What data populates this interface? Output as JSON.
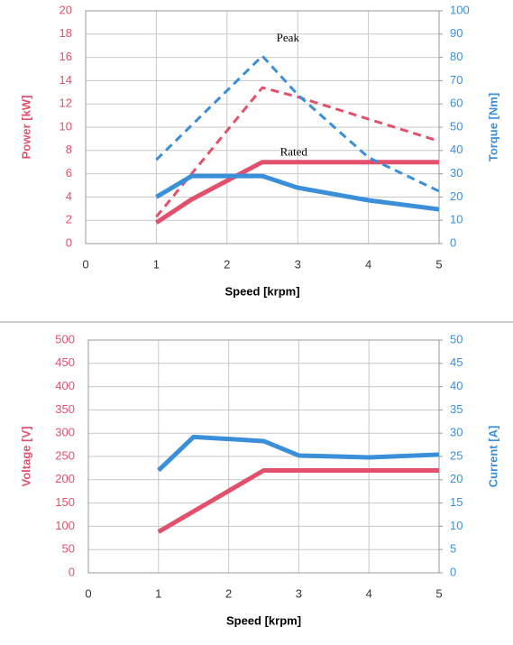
{
  "chart_data": [
    {
      "type": "line",
      "xlabel": "Speed [krpm]",
      "ylabel": "Power [kW]",
      "y2label": "Torque [Nm]",
      "xlim": [
        0,
        5
      ],
      "xticks": [
        0,
        1,
        2,
        3,
        4,
        5
      ],
      "ylim": [
        0,
        20
      ],
      "yticks": [
        0,
        2,
        4,
        6,
        8,
        10,
        12,
        14,
        16,
        18,
        20
      ],
      "y2lim": [
        0,
        100
      ],
      "y2ticks": [
        0,
        10,
        20,
        30,
        40,
        50,
        60,
        70,
        80,
        90,
        100
      ],
      "grid": true,
      "annotations": [
        "Peak",
        "Rated"
      ],
      "series": [
        {
          "color": "#e2506c",
          "dash": false,
          "x": [
            1,
            1.5,
            2.5,
            5
          ],
          "values": [
            1.8,
            3.8,
            7,
            7
          ]
        },
        {
          "color": "#e2506c",
          "dash": true,
          "x": [
            1,
            2.5,
            3,
            5
          ],
          "values": [
            2.3,
            13.4,
            12.6,
            8.8
          ]
        },
        {
          "color": "#3b8fd9",
          "dash": false,
          "axis": "y2",
          "x": [
            1,
            1.5,
            2.5,
            3,
            4,
            5
          ],
          "values": [
            20,
            29,
            29,
            24,
            18.6,
            14.7
          ]
        },
        {
          "color": "#3b8fd9",
          "dash": true,
          "axis": "y2",
          "x": [
            1,
            2.5,
            3,
            4,
            5
          ],
          "values": [
            36,
            80.6,
            64,
            37,
            22.5
          ]
        }
      ]
    },
    {
      "type": "line",
      "xlabel": "Speed [krpm]",
      "ylabel": "Voltage [V]",
      "y2label": "Current [A]",
      "xlim": [
        0,
        5
      ],
      "xticks": [
        0,
        1,
        2,
        3,
        4,
        5
      ],
      "ylim": [
        0,
        500
      ],
      "yticks": [
        0,
        50,
        100,
        150,
        200,
        250,
        300,
        350,
        400,
        450,
        500
      ],
      "y2lim": [
        0,
        50
      ],
      "y2ticks": [
        0,
        5,
        10,
        15,
        20,
        25,
        30,
        35,
        40,
        45,
        50
      ],
      "grid": true,
      "series": [
        {
          "color": "#e2506c",
          "dash": false,
          "x": [
            1,
            2.5,
            5
          ],
          "values": [
            88,
            220,
            220
          ]
        },
        {
          "color": "#3b8fd9",
          "dash": false,
          "axis": "y2",
          "x": [
            1,
            1.5,
            2.5,
            3,
            4,
            5
          ],
          "values": [
            22,
            29.2,
            28.3,
            25.2,
            24.8,
            25.4
          ]
        }
      ]
    }
  ]
}
